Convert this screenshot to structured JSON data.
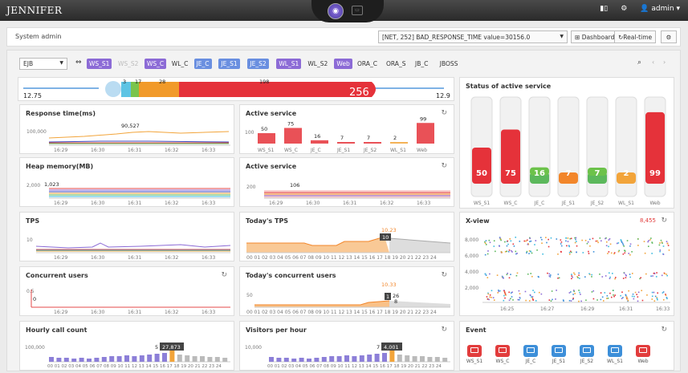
{
  "app": {
    "logo": "JENNIFER",
    "user": "admin ▾",
    "center_icon": "◉",
    "center_sq": "▭"
  },
  "subbar": {
    "title": "System admin",
    "event_value": "[NET, 252] BAD_RESPONSE_TIME value=30156.0",
    "dashboard_label": "Dashboard",
    "realtime_label": "Real-time"
  },
  "toolbar": {
    "group_select": "EJB",
    "instances": [
      {
        "label": "WS_S1",
        "state": "on"
      },
      {
        "label": "WS_S2",
        "state": "dis"
      },
      {
        "label": "WS_C",
        "state": "on"
      },
      {
        "label": "WL_C",
        "state": "off"
      },
      {
        "label": "JE_C",
        "state": "on-b"
      },
      {
        "label": "JE_S1",
        "state": "on-b"
      },
      {
        "label": "JE_S2",
        "state": "on-b"
      },
      {
        "label": "WL_S1",
        "state": "on"
      },
      {
        "label": "WL_S2",
        "state": "off"
      },
      {
        "label": "Web",
        "state": "on"
      },
      {
        "label": "ORA_C",
        "state": "off"
      },
      {
        "label": "ORA_S",
        "state": "off"
      },
      {
        "label": "JB_C",
        "state": "off"
      },
      {
        "label": "JBOSS",
        "state": "off"
      }
    ]
  },
  "speedbar": {
    "left_value": "12.75",
    "right_value": "12.9",
    "total": "256",
    "marks": [
      "3",
      "17",
      "28",
      "198"
    ]
  },
  "panels": {
    "response_time": {
      "title": "Response time(ms)",
      "ymax": "100,000",
      "peak": "90,527"
    },
    "active_service_bar": {
      "title": "Active service",
      "ymax": "100"
    },
    "heap": {
      "title": "Heap memory(MB)",
      "ymax": "2,000",
      "value": "1,023"
    },
    "active_service_line": {
      "title": "Active service",
      "ymax": "200",
      "value": "106"
    },
    "tps": {
      "title": "TPS",
      "ymax": "10"
    },
    "todays_tps": {
      "title": "Today's TPS",
      "hover_top": "10.23",
      "hover_val": "10"
    },
    "concurrent": {
      "title": "Concurrent users",
      "ymax": "0.5",
      "value": "0"
    },
    "todays_concurrent": {
      "title": "Today's concurrent users",
      "ymax": "50",
      "hover_top": "10.33",
      "hover_box": "1",
      "hover_val": "26",
      "hover_sub": "8"
    },
    "hourly_call": {
      "title": "Hourly call count",
      "ymax": "100,000",
      "tooltip": "27,873",
      "pre": "5"
    },
    "visitors": {
      "title": "Visitors per hour",
      "ymax": "10,000",
      "tooltip": "4,001",
      "pre": "7"
    },
    "status": {
      "title": "Status of active service"
    },
    "xview": {
      "title": "X-view",
      "count": "8,455",
      "ylabels": [
        "8,000",
        "6,000",
        "4,000",
        "2,000"
      ]
    },
    "event": {
      "title": "Event"
    }
  },
  "time_ticks": [
    "16:29",
    "16:30",
    "16:31",
    "16:32",
    "16:33"
  ],
  "hour_ticks": "00 01 02 03 04 05 06 07 08 09 10 11 12 13 14 15 16 17 18 19 20 21 22 23 24",
  "xview_ticks": [
    "16:25",
    "16:27",
    "16:29",
    "16:31",
    "16:33"
  ],
  "chart_data": [
    {
      "type": "bar",
      "title": "Active service",
      "categories": [
        "WS_S1",
        "WS_C",
        "JE_C",
        "JE_S1",
        "JE_S2",
        "WL_S1",
        "Web"
      ],
      "values": [
        50,
        75,
        16,
        7,
        7,
        2,
        99
      ],
      "ylim": [
        0,
        100
      ]
    },
    {
      "type": "bar",
      "title": "Status of active service",
      "categories": [
        "WS_S1",
        "WS_C",
        "JE_C",
        "JE_S1",
        "JE_S2",
        "WL_S1",
        "Web"
      ],
      "values": [
        50,
        75,
        16,
        7,
        7,
        2,
        99
      ]
    }
  ],
  "events": [
    {
      "label": "WS_S1",
      "color": "#e23c3c"
    },
    {
      "label": "WS_C",
      "color": "#e23c3c"
    },
    {
      "label": "JE_C",
      "color": "#3d8fd9"
    },
    {
      "label": "JE_S1",
      "color": "#3d8fd9"
    },
    {
      "label": "JE_S2",
      "color": "#3d8fd9"
    },
    {
      "label": "WL_S1",
      "color": "#3d8fd9"
    },
    {
      "label": "Web",
      "color": "#e23c3c"
    }
  ]
}
